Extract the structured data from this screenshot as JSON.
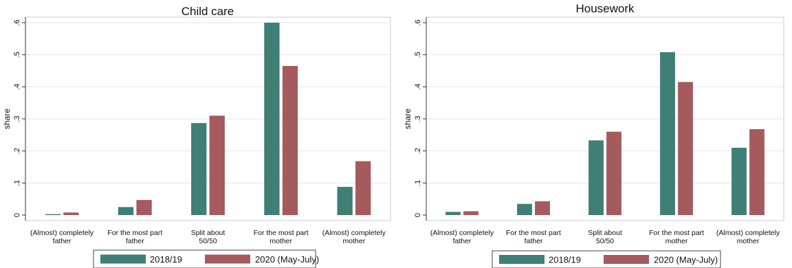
{
  "colors": {
    "series_2018": "#3f7f75",
    "series_2020": "#a55a5e",
    "grid": "#e5e5e5"
  },
  "chart_data": [
    {
      "type": "bar",
      "title": "Child care",
      "ylabel": "share",
      "ylim": [
        0,
        0.6
      ],
      "yticks": [
        0,
        0.1,
        0.2,
        0.3,
        0.4,
        0.5,
        0.6
      ],
      "ytick_labels": [
        "0",
        ".1",
        ".2",
        ".3",
        ".4",
        ".5",
        ".6"
      ],
      "categories": [
        [
          "(Almost) completely",
          "father"
        ],
        [
          "For the most part",
          "father"
        ],
        [
          "Split about",
          "50/50"
        ],
        [
          "For the most part",
          "mother"
        ],
        [
          "(Almost) completely",
          "mother"
        ]
      ],
      "series": [
        {
          "name": "2018/19",
          "values": [
            0.003,
            0.025,
            0.287,
            0.6,
            0.088
          ]
        },
        {
          "name": "2020 (May-July)",
          "values": [
            0.008,
            0.047,
            0.31,
            0.465,
            0.168
          ]
        }
      ],
      "grid": true,
      "legend": "bottom"
    },
    {
      "type": "bar",
      "title": "Housework",
      "ylabel": "share",
      "ylim": [
        0,
        0.6
      ],
      "yticks": [
        0,
        0.1,
        0.2,
        0.3,
        0.4,
        0.5,
        0.6
      ],
      "ytick_labels": [
        "0",
        ".1",
        ".2",
        ".3",
        ".4",
        ".5",
        ".6"
      ],
      "categories": [
        [
          "(Almost) completely",
          "father"
        ],
        [
          "For the most part",
          "father"
        ],
        [
          "Split about",
          "50/50"
        ],
        [
          "For the most part",
          "mother"
        ],
        [
          "(Almost) completely",
          "mother"
        ]
      ],
      "series": [
        {
          "name": "2018/19",
          "values": [
            0.01,
            0.035,
            0.233,
            0.508,
            0.21
          ]
        },
        {
          "name": "2020 (May-July)",
          "values": [
            0.012,
            0.043,
            0.26,
            0.415,
            0.268
          ]
        }
      ],
      "grid": true,
      "legend": "bottom"
    }
  ]
}
